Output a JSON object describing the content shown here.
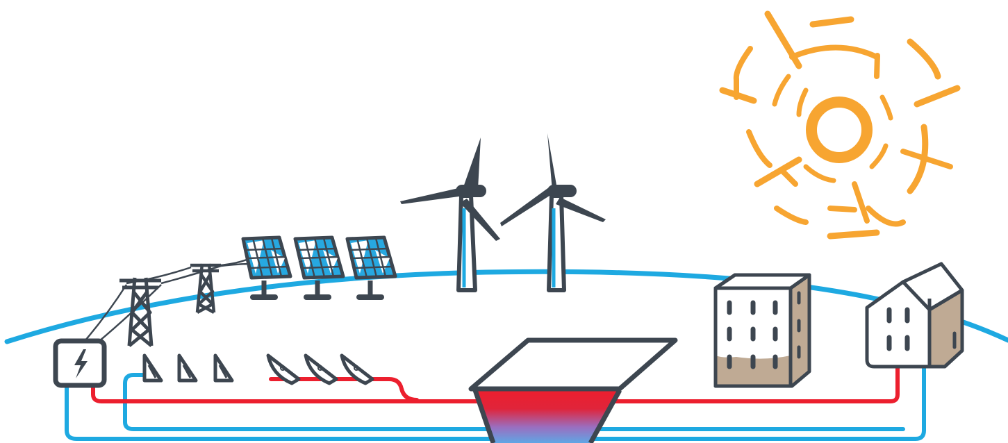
{
  "colors": {
    "background": "#ffffff",
    "outline": "#3d4650",
    "ground_line": "#1ea9e1",
    "cold_pipe": "#1ea9e1",
    "hot_pipe": "#ec1f2e",
    "sun": "#f7a531",
    "solar_cell": "#27a8e0",
    "building_side": "#bfaa94",
    "building_front": "#ffffff",
    "tank_hot": "#ec1f2e",
    "tank_cold": "#5fa6e4"
  },
  "icons": {
    "sun": "sun-icon",
    "wind_turbine": "wind-turbine-icon",
    "pv_panel": "solar-panel-icon",
    "pylon": "transmission-tower-icon",
    "grid_box": "lightning-bolt-icon",
    "collector": "solar-thermal-collector-icon",
    "dish": "parabolic-dish-icon",
    "storage": "thermal-storage-pit-icon",
    "apartment": "apartment-building-icon",
    "house": "house-icon"
  },
  "counts": {
    "wind_turbines": 2,
    "pv_panels": 3,
    "pylons": 2,
    "flat_collectors": 3,
    "dish_collectors": 3,
    "buildings": 2
  }
}
